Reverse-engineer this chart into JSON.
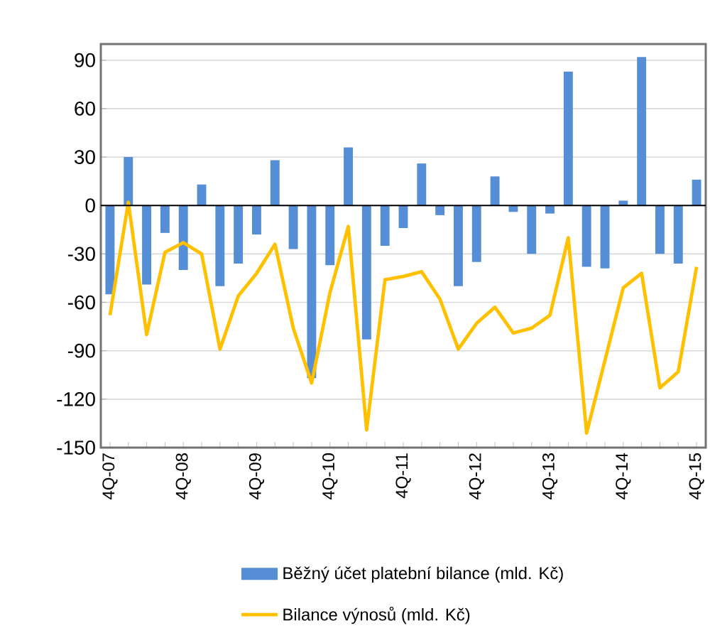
{
  "chart_data": {
    "type": "bar",
    "categories": [
      "4Q-07",
      null,
      null,
      null,
      "4Q-08",
      null,
      null,
      null,
      "4Q-09",
      null,
      null,
      null,
      "4Q-10",
      null,
      null,
      null,
      "4Q-11",
      null,
      null,
      null,
      "4Q-12",
      null,
      null,
      null,
      "4Q-13",
      null,
      null,
      null,
      "4Q-14",
      null,
      null,
      null,
      "4Q-15"
    ],
    "series": [
      {
        "name": "Běžný účet platební bilance (mld. Kč)",
        "color": "#558ed5",
        "values": [
          -55,
          30,
          -49,
          -17,
          -40,
          13,
          -50,
          -36,
          -18,
          28,
          -27,
          -107,
          -37,
          36,
          -83,
          -25,
          -14,
          26,
          -6,
          -50,
          -35,
          18,
          -4,
          -30,
          -5,
          83,
          -38,
          -39,
          3,
          92,
          -30,
          -36,
          16
        ]
      },
      {
        "name": "Bilance výnosů (mld. Kč)",
        "type": "line",
        "color": "#ffc000",
        "values": [
          -68,
          2,
          -80,
          -29,
          -23,
          -30,
          -89,
          -56,
          -42,
          -24,
          -76,
          -110,
          -54,
          -13,
          -139,
          -46,
          -44,
          -41,
          -58,
          -89,
          -73,
          -63,
          -79,
          -76,
          -68,
          -20,
          -141,
          -96,
          -51,
          -42,
          -113,
          -103,
          -38
        ]
      }
    ],
    "ylim": [
      -150,
      100
    ],
    "yticks": [
      -150,
      -120,
      -90,
      -60,
      -30,
      0,
      30,
      60,
      90
    ],
    "grid": "y",
    "legend": "bottom"
  }
}
